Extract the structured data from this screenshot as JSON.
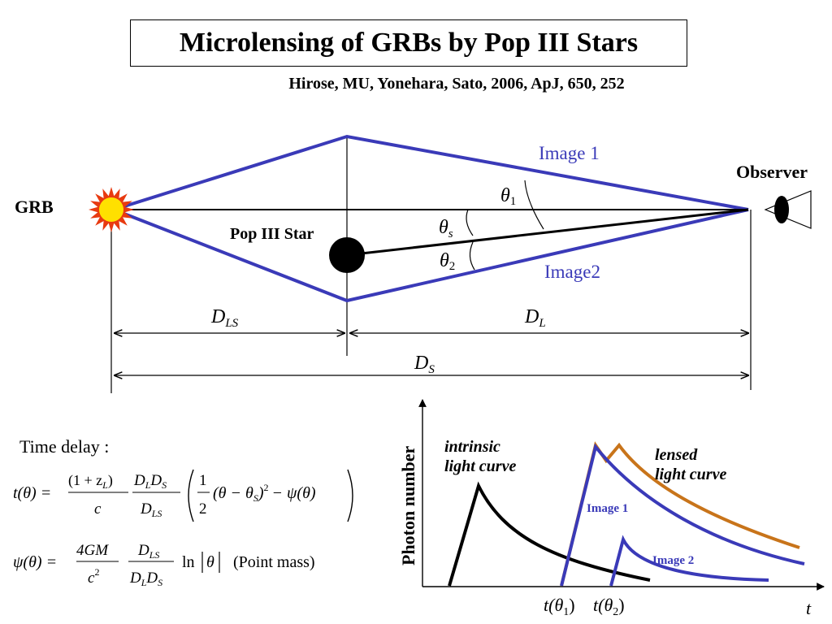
{
  "header": {
    "title": "Microlensing of GRBs by Pop III Stars",
    "authors": "Hirose, MU, Yonehara, Sato, 2006, ApJ, 650, 252"
  },
  "diagram": {
    "grb_label": "GRB",
    "star_label": "Pop III Star",
    "observer_label": "Observer",
    "image1_label": "Image 1",
    "image2_label": "Image2",
    "theta1": "θ",
    "theta1_sub": "1",
    "thetas": "θ",
    "thetas_sub": "s",
    "theta2": "θ",
    "theta2_sub": "2",
    "dls": "D",
    "dls_sub": "LS",
    "dl": "D",
    "dl_sub": "L",
    "ds": "D",
    "ds_sub": "S",
    "colors": {
      "lens_ray": "#3a3ab8",
      "label_blue": "#3a3ab8",
      "burst_outer": "#e83a10",
      "burst_inner": "#ffe000"
    }
  },
  "equations": {
    "time_delay_label": "Time delay :",
    "eq1_lhs": "t(θ) =",
    "eq1_frac1_num": "(1 + z",
    "eq1_frac1_num_sub": "L",
    "eq1_frac1_num_end": ")",
    "eq1_frac1_den": "c",
    "eq1_frac2_num": "D",
    "eq1_frac2_num_sub1": "L",
    "eq1_frac2_num_mid": "D",
    "eq1_frac2_num_sub2": "S",
    "eq1_frac2_den": "D",
    "eq1_frac2_den_sub": "LS",
    "eq1_half_num": "1",
    "eq1_half_den": "2",
    "eq1_body": "(θ − θ",
    "eq1_body_sub": "S",
    "eq1_body_end": ")",
    "eq1_sq": "2",
    "eq1_tail": "− ψ(θ)",
    "eq2_lhs": "ψ(θ) =",
    "eq2_frac1_num": "4GM",
    "eq2_frac1_den": "c",
    "eq2_frac1_den_sup": "2",
    "eq2_frac2_num": "D",
    "eq2_frac2_num_sub": "LS",
    "eq2_frac2_den": "D",
    "eq2_frac2_den_sub1": "L",
    "eq2_frac2_den_mid": "D",
    "eq2_frac2_den_sub2": "S",
    "eq2_ln": "ln",
    "eq2_abs": "θ",
    "eq2_note": "(Point mass)"
  },
  "lightcurve": {
    "ylabel": "Photon number",
    "xlabel": "t",
    "intrinsic_label_1": "intrinsic",
    "intrinsic_label_2": "light curve",
    "lensed_label_1": "lensed",
    "lensed_label_2": "light curve",
    "image1_label": "Image 1",
    "image2_label": "Image 2",
    "tick1": "t(θ",
    "tick1_sub": "1",
    "tick1_end": ")",
    "tick2": "t(θ",
    "tick2_sub": "2",
    "tick2_end": ")",
    "colors": {
      "intrinsic": "#000000",
      "image": "#3a3ab8",
      "lensed": "#c8741a"
    }
  }
}
